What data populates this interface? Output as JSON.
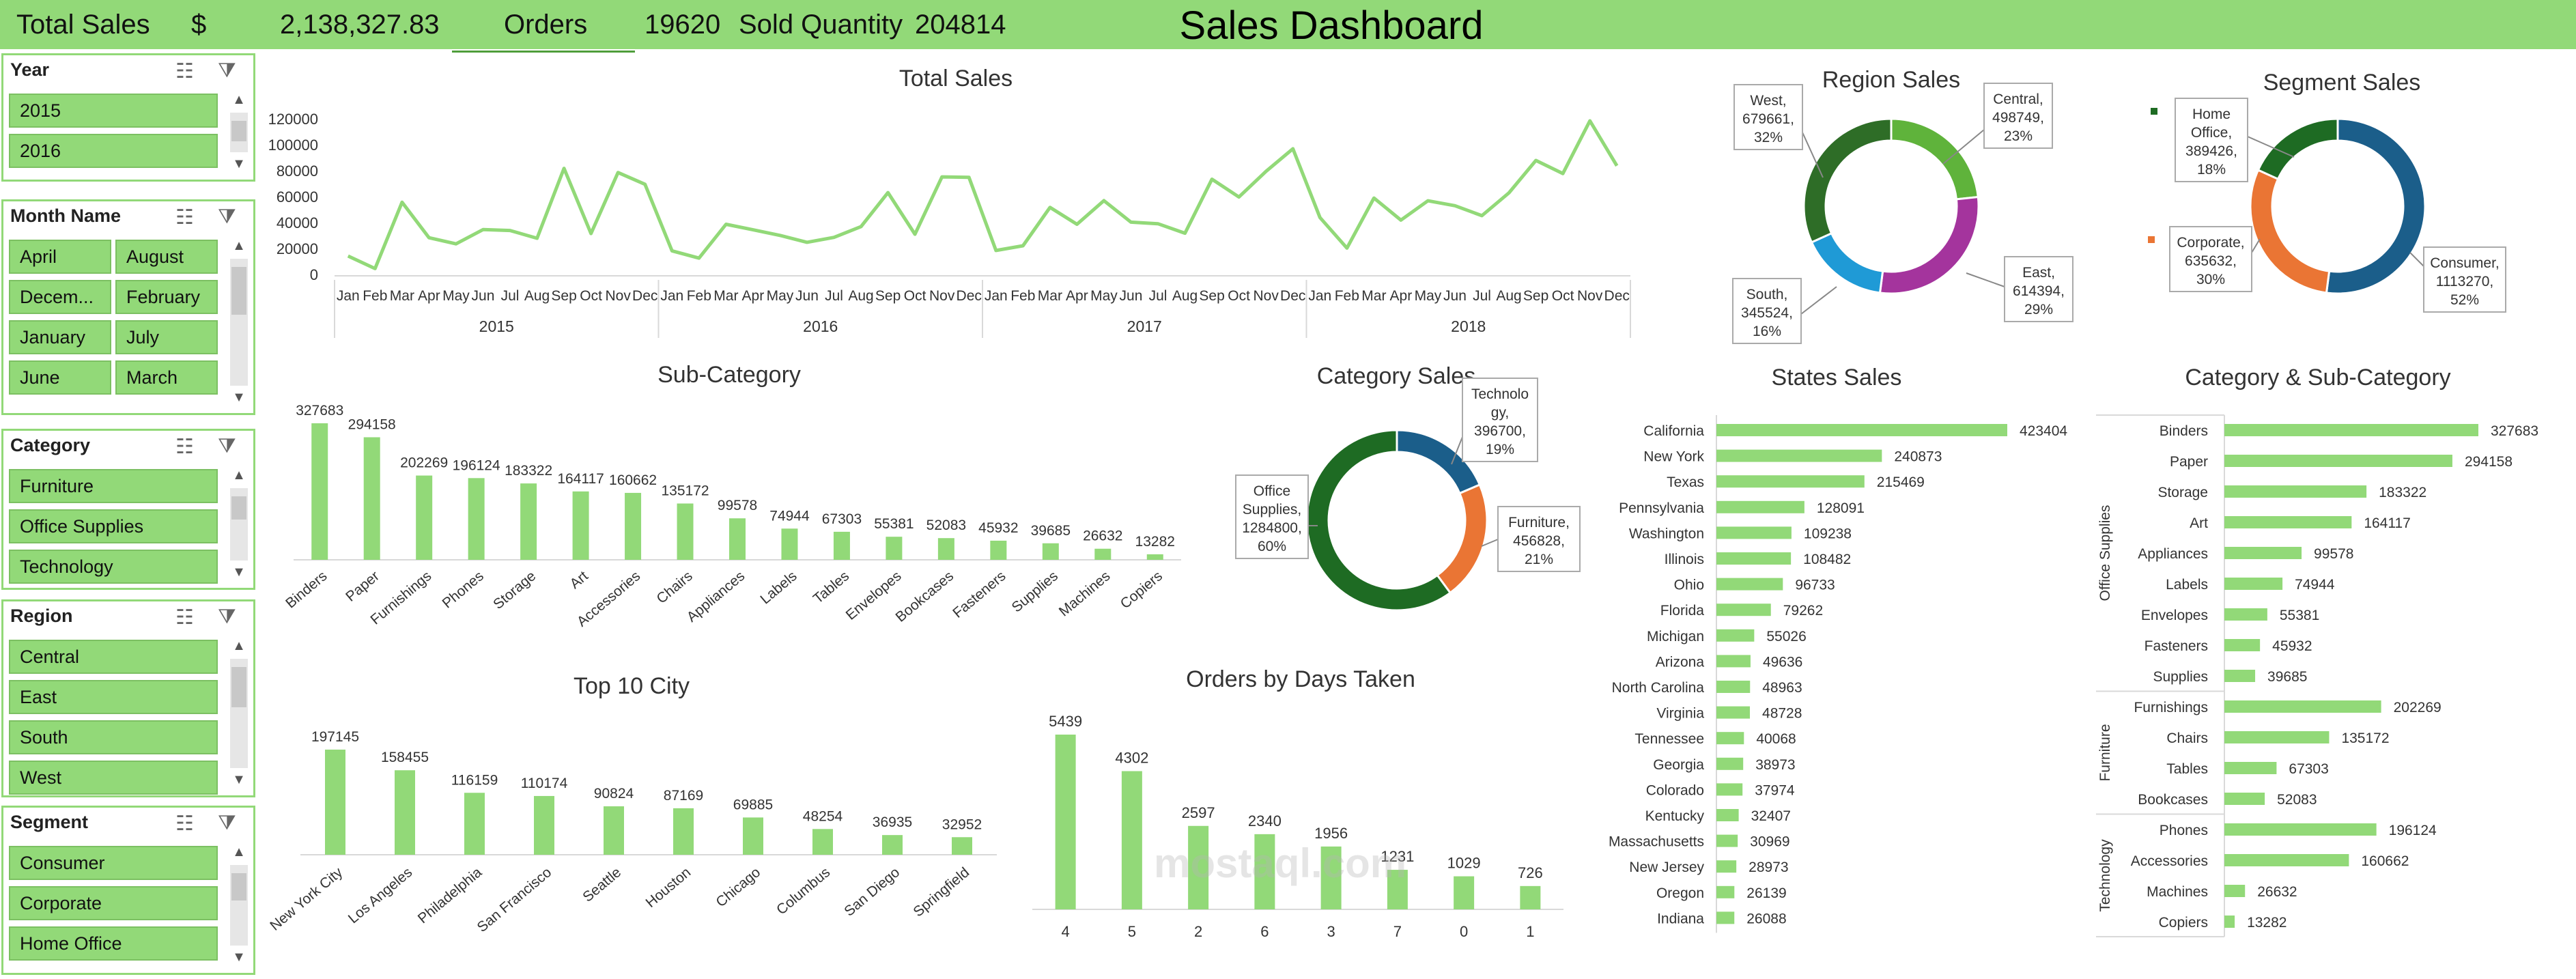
{
  "header": {
    "total_sales_label": "Total Sales",
    "currency": "$",
    "total_sales_value": "2,138,327.83",
    "orders_label": "Orders",
    "orders_value": "19620",
    "sold_qty_label": "Sold Quantity",
    "sold_qty_value": "204814",
    "title": "Sales Dashboard"
  },
  "colors": {
    "green": "#92d978",
    "dark_green": "#1e6b23",
    "blue": "#1b5e8a",
    "orange": "#ea7534",
    "purple": "#a4349d",
    "sky": "#1f9ad6",
    "grass": "#5fb33b"
  },
  "slicers": [
    {
      "title": "Year",
      "items": [
        "2015",
        "2016"
      ]
    },
    {
      "title": "Month Name",
      "items": [
        "April",
        "August",
        "Decem...",
        "February",
        "January",
        "July",
        "June",
        "March"
      ]
    },
    {
      "title": "Category",
      "items": [
        "Furniture",
        "Office Supplies",
        "Technology"
      ]
    },
    {
      "title": "Region",
      "items": [
        "Central",
        "East",
        "South",
        "West"
      ]
    },
    {
      "title": "Segment",
      "items": [
        "Consumer",
        "Corporate",
        "Home Office"
      ]
    }
  ],
  "chart_data": [
    {
      "type": "line",
      "title": "Total Sales",
      "months": [
        "Jan",
        "Feb",
        "Mar",
        "Apr",
        "May",
        "Jun",
        "Jul",
        "Aug",
        "Sep",
        "Oct",
        "Nov",
        "Dec"
      ],
      "years": [
        "2015",
        "2016",
        "2017",
        "2018"
      ],
      "yticks": [
        "0",
        "20000",
        "40000",
        "60000",
        "80000",
        "100000",
        "120000"
      ],
      "ylim": [
        0,
        120000
      ],
      "values": [
        14200,
        4500,
        55700,
        28300,
        23600,
        34600,
        33900,
        27900,
        81800,
        31500,
        78600,
        69500,
        18200,
        12600,
        38700,
        34400,
        30100,
        24800,
        28600,
        36900,
        63100,
        31000,
        75200,
        74900,
        18500,
        22100,
        51700,
        38700,
        56900,
        40300,
        39100,
        31800,
        73400,
        59700,
        79400,
        96900,
        43900,
        20300,
        58900,
        41900,
        56800,
        53000,
        45300,
        62900,
        87900,
        77800,
        118400,
        83800
      ]
    },
    {
      "type": "pie",
      "title": "Region Sales",
      "labels": [
        "Central",
        "East",
        "South",
        "West"
      ],
      "values": [
        498749,
        614394,
        345524,
        679661
      ],
      "percents": [
        "23%",
        "29%",
        "16%",
        "32%"
      ]
    },
    {
      "type": "pie",
      "title": "Segment Sales",
      "labels": [
        "Consumer",
        "Corporate",
        "Home Office"
      ],
      "values": [
        1113270,
        635632,
        389426
      ],
      "percents": [
        "52%",
        "30%",
        "18%"
      ]
    },
    {
      "type": "bar",
      "title": "Sub-Category",
      "categories": [
        "Binders",
        "Paper",
        "Furnishings",
        "Phones",
        "Storage",
        "Art",
        "Accessories",
        "Chairs",
        "Appliances",
        "Labels",
        "Tables",
        "Envelopes",
        "Bookcases",
        "Fasteners",
        "Supplies",
        "Machines",
        "Copiers"
      ],
      "values": [
        327683,
        294158,
        202269,
        196124,
        183322,
        164117,
        160662,
        135172,
        99578,
        74944,
        67303,
        55381,
        52083,
        45932,
        39685,
        26632,
        13282
      ]
    },
    {
      "type": "pie",
      "title": "Category Sales",
      "labels": [
        "Technology",
        "Furniture",
        "Office Supplies"
      ],
      "label_lines": [
        [
          "Technolo",
          "gy,",
          "396700,",
          "19%"
        ],
        [
          "Furniture,",
          "456828,",
          "21%"
        ],
        [
          "Office",
          "Supplies,",
          "1284800,",
          "60%"
        ]
      ],
      "values": [
        396700,
        456828,
        1284800
      ],
      "percents": [
        "19%",
        "21%",
        "60%"
      ]
    },
    {
      "type": "bar",
      "title": "States Sales",
      "categories": [
        "California",
        "New York",
        "Texas",
        "Pennsylvania",
        "Washington",
        "Illinois",
        "Ohio",
        "Florida",
        "Michigan",
        "Arizona",
        "North Carolina",
        "Virginia",
        "Tennessee",
        "Georgia",
        "Colorado",
        "Kentucky",
        "Massachusetts",
        "New Jersey",
        "Oregon",
        "Indiana"
      ],
      "values": [
        423404,
        240873,
        215469,
        128091,
        109238,
        108482,
        96733,
        79262,
        55026,
        49636,
        48963,
        48728,
        40068,
        38973,
        37974,
        32407,
        30969,
        28973,
        26139,
        26088
      ]
    },
    {
      "type": "bar",
      "title": "Category & Sub-Category",
      "groups": [
        {
          "name": "Office Supplies",
          "categories": [
            "Binders",
            "Paper",
            "Storage",
            "Art",
            "Appliances",
            "Labels",
            "Envelopes",
            "Fasteners",
            "Supplies"
          ],
          "values": [
            327683,
            294158,
            183322,
            164117,
            99578,
            74944,
            55381,
            45932,
            39685
          ]
        },
        {
          "name": "Furniture",
          "categories": [
            "Furnishings",
            "Chairs",
            "Tables",
            "Bookcases"
          ],
          "values": [
            202269,
            135172,
            67303,
            52083
          ]
        },
        {
          "name": "Technology",
          "categories": [
            "Phones",
            "Accessories",
            "Machines",
            "Copiers"
          ],
          "values": [
            196124,
            160662,
            26632,
            13282
          ]
        }
      ]
    },
    {
      "type": "bar",
      "title": "Top 10 City",
      "categories": [
        "New York City",
        "Los Angeles",
        "Philadelphia",
        "San Francisco",
        "Seattle",
        "Houston",
        "Chicago",
        "Columbus",
        "San Diego",
        "Springfield"
      ],
      "values": [
        197145,
        158455,
        116159,
        110174,
        90824,
        87169,
        69885,
        48254,
        36935,
        32952
      ]
    },
    {
      "type": "bar",
      "title": "Orders by Days Taken",
      "categories": [
        "4",
        "5",
        "2",
        "6",
        "3",
        "7",
        "0",
        "1"
      ],
      "values": [
        5439,
        4302,
        2597,
        2340,
        1956,
        1231,
        1029,
        726
      ]
    }
  ],
  "watermark": "mostaql.com"
}
